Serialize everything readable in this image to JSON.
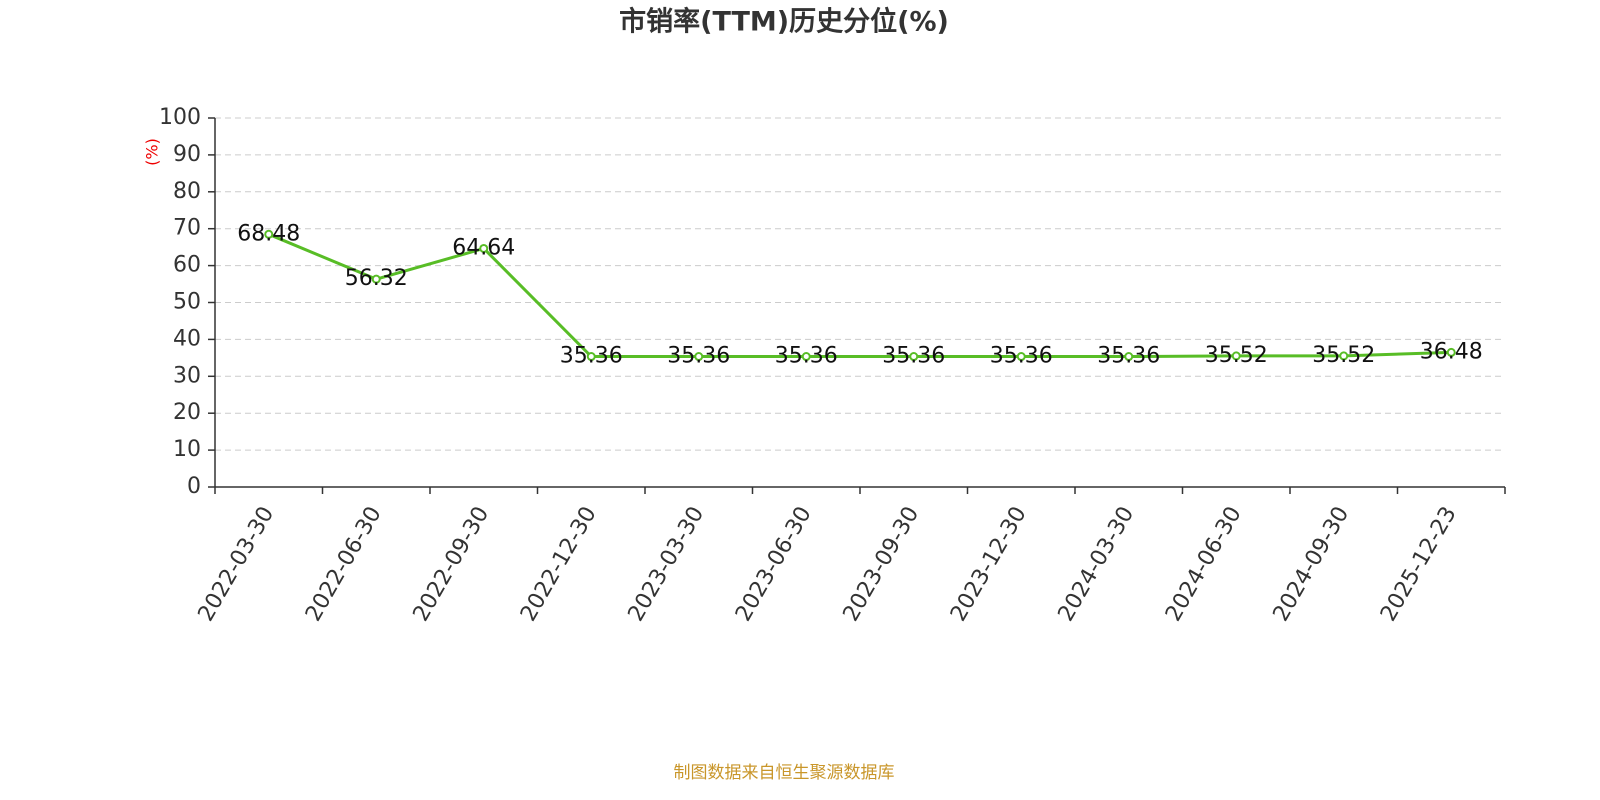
{
  "chart_data": {
    "type": "line",
    "title": "市销率(TTM)历史分位(%)",
    "y_label": "(%)",
    "source": "制图数据来自恒生聚源数据库",
    "categories": [
      "2022-03-30",
      "2022-06-30",
      "2022-09-30",
      "2022-12-30",
      "2023-03-30",
      "2023-06-30",
      "2023-09-30",
      "2023-12-30",
      "2024-03-30",
      "2024-06-30",
      "2024-09-30",
      "2025-12-23"
    ],
    "values": [
      68.48,
      56.32,
      64.64,
      35.36,
      35.36,
      35.36,
      35.36,
      35.36,
      35.36,
      35.52,
      35.52,
      36.48
    ],
    "color": "#58bd26",
    "ylim": [
      0,
      100
    ],
    "yticks": [
      0,
      10,
      20,
      30,
      40,
      50,
      60,
      70,
      80,
      90,
      100
    ],
    "grid": true
  }
}
